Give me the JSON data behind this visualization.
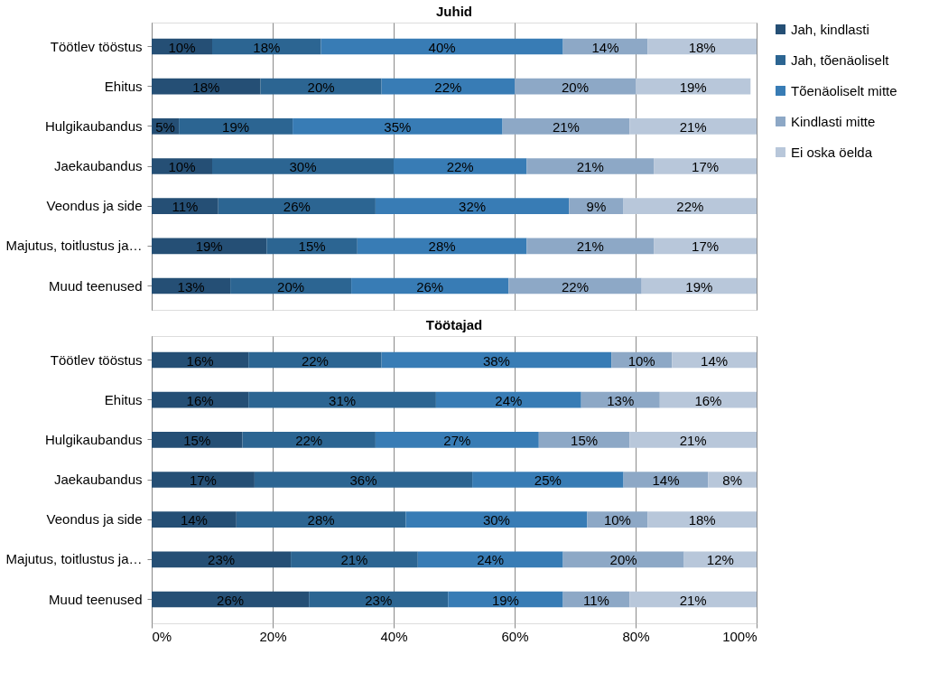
{
  "chart_data": [
    {
      "type": "bar",
      "orientation": "horizontal",
      "stacked": true,
      "title": "Juhid",
      "tick_labels": "y",
      "grid": "x",
      "legend": "right",
      "categories": [
        "Töötlev tööstus",
        "Ehitus",
        "Hulgikaubandus",
        "Jaekaubandus",
        "Veondus ja side",
        "Majutus, toitlustus ja…",
        "Muud teenused"
      ],
      "xlim": [
        0,
        100
      ],
      "xticks": [
        {
          "value": 0,
          "label": null
        },
        {
          "value": 20,
          "label": null
        },
        {
          "value": 40,
          "label": null
        },
        {
          "value": 60,
          "label": null
        },
        {
          "value": 80,
          "label": null
        },
        {
          "value": 100,
          "label": null
        }
      ],
      "series": [
        {
          "name": "Jah, kindlasti",
          "color": "#254f75",
          "values": [
            10,
            18,
            4.5,
            10,
            11,
            19,
            13
          ],
          "value_labels": [
            "10%",
            "18%",
            "5%",
            "10%",
            "11%",
            "19%",
            "13%"
          ]
        },
        {
          "name": "Jah, tõenäoliselt",
          "color": "#2c6592",
          "values": [
            18,
            20,
            18.8,
            30,
            26,
            15,
            20
          ],
          "value_labels": [
            "18%",
            "20%",
            "19%",
            "30%",
            "26%",
            "15%",
            "20%"
          ]
        },
        {
          "name": "Tõenäoliselt mitte",
          "color": "#387cb5",
          "values": [
            40,
            22,
            34.7,
            22,
            32,
            28,
            26
          ],
          "value_labels": [
            "40%",
            "22%",
            "35%",
            "22%",
            "32%",
            "28%",
            "26%"
          ]
        },
        {
          "name": "Kindlasti mitte",
          "color": "#8da8c6",
          "values": [
            14,
            20,
            21,
            21,
            9,
            21,
            22
          ],
          "value_labels": [
            "14%",
            "20%",
            "21%",
            "21%",
            "9%",
            "21%",
            "22%"
          ]
        },
        {
          "name": "Ei oska öelda",
          "color": "#b8c7da",
          "values": [
            18,
            19,
            21,
            17,
            22,
            17,
            19
          ],
          "value_labels": [
            "18%",
            "19%",
            "21%",
            "17%",
            "22%",
            "17%",
            "19%"
          ]
        }
      ]
    },
    {
      "type": "bar",
      "orientation": "horizontal",
      "stacked": true,
      "title": "Töötajad",
      "grid": "x",
      "legend": "right",
      "categories": [
        "Töötlev tööstus",
        "Ehitus",
        "Hulgikaubandus",
        "Jaekaubandus",
        "Veondus ja side",
        "Majutus, toitlustus ja…",
        "Muud teenused"
      ],
      "xlim": [
        0,
        100
      ],
      "xticks": [
        {
          "value": 0,
          "label": "0%"
        },
        {
          "value": 20,
          "label": "20%"
        },
        {
          "value": 40,
          "label": "40%"
        },
        {
          "value": 60,
          "label": "60%"
        },
        {
          "value": 80,
          "label": "80%"
        },
        {
          "value": 100,
          "label": "100%"
        }
      ],
      "series": [
        {
          "name": "Jah, kindlasti",
          "color": "#254f75",
          "values": [
            16,
            16,
            15,
            17,
            14,
            23,
            26
          ],
          "value_labels": [
            "16%",
            "16%",
            "15%",
            "17%",
            "14%",
            "23%",
            "26%"
          ]
        },
        {
          "name": "Jah, tõenäoliselt",
          "color": "#2c6592",
          "values": [
            22,
            31,
            22,
            36,
            28,
            21,
            23
          ],
          "value_labels": [
            "22%",
            "31%",
            "22%",
            "36%",
            "28%",
            "21%",
            "23%"
          ]
        },
        {
          "name": "Tõenäoliselt mitte",
          "color": "#387cb5",
          "values": [
            38,
            24,
            27,
            25,
            30,
            24,
            19
          ],
          "value_labels": [
            "38%",
            "24%",
            "27%",
            "25%",
            "30%",
            "24%",
            "19%"
          ]
        },
        {
          "name": "Kindlasti mitte",
          "color": "#8da8c6",
          "values": [
            10,
            13,
            15,
            14,
            10,
            20,
            11
          ],
          "value_labels": [
            "10%",
            "13%",
            "15%",
            "14%",
            "10%",
            "20%",
            "11%"
          ]
        },
        {
          "name": "Ei oska öelda",
          "color": "#b8c7da",
          "values": [
            14,
            16,
            21,
            8,
            18,
            12,
            21
          ],
          "value_labels": [
            "14%",
            "16%",
            "21%",
            "8%",
            "18%",
            "12%",
            "21%"
          ]
        }
      ]
    }
  ]
}
